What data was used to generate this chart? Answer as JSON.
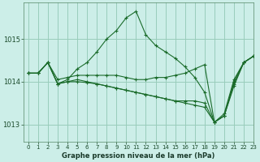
{
  "background_color": "#cceee8",
  "grid_color": "#99ccbb",
  "line_color": "#1a6b2a",
  "title": "Graphe pression niveau de la mer (hPa)",
  "xlim": [
    -0.5,
    23
  ],
  "ylim": [
    1012.6,
    1015.85
  ],
  "yticks": [
    1013,
    1014,
    1015
  ],
  "xticks": [
    0,
    1,
    2,
    3,
    4,
    5,
    6,
    7,
    8,
    9,
    10,
    11,
    12,
    13,
    14,
    15,
    16,
    17,
    18,
    19,
    20,
    21,
    22,
    23
  ],
  "series": [
    [
      1014.2,
      1014.2,
      1014.45,
      1013.95,
      1014.05,
      1014.3,
      1014.45,
      1014.7,
      1015.0,
      1015.2,
      1015.5,
      1015.65,
      1015.1,
      1014.85,
      1014.7,
      1014.55,
      1014.35,
      1014.1,
      1013.75,
      1013.05,
      1013.2,
      1014.0,
      1014.45,
      1014.6
    ],
    [
      1014.2,
      1014.2,
      1014.45,
      1014.05,
      1014.1,
      1014.15,
      1014.15,
      1014.15,
      1014.15,
      1014.15,
      1014.1,
      1014.05,
      1014.05,
      1014.1,
      1014.1,
      1014.15,
      1014.2,
      1014.3,
      1014.4,
      1013.05,
      1013.25,
      1014.05,
      1014.45,
      1014.6
    ],
    [
      1014.2,
      1014.2,
      1014.45,
      1013.95,
      1014.0,
      1014.05,
      1014.0,
      1013.95,
      1013.9,
      1013.85,
      1013.8,
      1013.75,
      1013.7,
      1013.65,
      1013.6,
      1013.55,
      1013.55,
      1013.55,
      1013.5,
      1013.05,
      1013.2,
      1013.95,
      1014.45,
      1014.6
    ],
    [
      1014.2,
      1014.2,
      1014.45,
      1013.95,
      1014.0,
      1014.0,
      1013.98,
      1013.95,
      1013.9,
      1013.85,
      1013.8,
      1013.75,
      1013.7,
      1013.65,
      1013.6,
      1013.55,
      1013.5,
      1013.45,
      1013.4,
      1013.05,
      1013.2,
      1013.9,
      1014.45,
      1014.6
    ]
  ]
}
